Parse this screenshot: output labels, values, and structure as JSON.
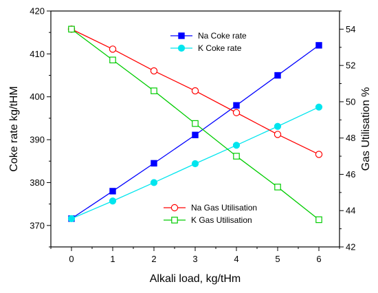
{
  "chart_data": {
    "type": "line",
    "x": [
      0,
      1,
      2,
      3,
      4,
      5,
      6
    ],
    "xlabel": "Alkali load, kg/tHm",
    "xlim": [
      -0.5,
      6.5
    ],
    "xticks": [
      "0",
      "1",
      "2",
      "3",
      "4",
      "5",
      "6"
    ],
    "ylabel_left": "Coke rate kg/tHM",
    "ylim_left": [
      365,
      420
    ],
    "yticks_left": [
      "370",
      "380",
      "390",
      "400",
      "410",
      "420"
    ],
    "ylabel_right": "Gas Utilisation %",
    "ylim_right": [
      42,
      55
    ],
    "yticks_right": [
      "42",
      "44",
      "46",
      "48",
      "50",
      "52",
      "54"
    ],
    "series": [
      {
        "name": "Na Coke rate",
        "axis": "left",
        "color": "#0000ff",
        "marker": "filled-square",
        "values": [
          371.6,
          378.0,
          384.5,
          391.1,
          398.0,
          405.0,
          412.0
        ]
      },
      {
        "name": "K Coke rate",
        "axis": "left",
        "color": "#00e5ee",
        "marker": "filled-circle",
        "values": [
          371.6,
          375.7,
          380.0,
          384.4,
          388.7,
          393.1,
          397.6
        ]
      },
      {
        "name": "Na Gas Utilisation",
        "axis": "right",
        "color": "#ff0000",
        "marker": "open-circle",
        "values": [
          54.0,
          52.9,
          51.7,
          50.6,
          49.4,
          48.2,
          47.1
        ]
      },
      {
        "name": "K Gas Utilisation",
        "axis": "right",
        "color": "#00cc00",
        "marker": "open-square",
        "values": [
          54.0,
          52.3,
          50.6,
          48.8,
          47.0,
          45.3,
          43.5
        ]
      }
    ],
    "grid": false,
    "legend_upper_placement": "top-center",
    "legend_lower_placement": "bottom-center"
  }
}
